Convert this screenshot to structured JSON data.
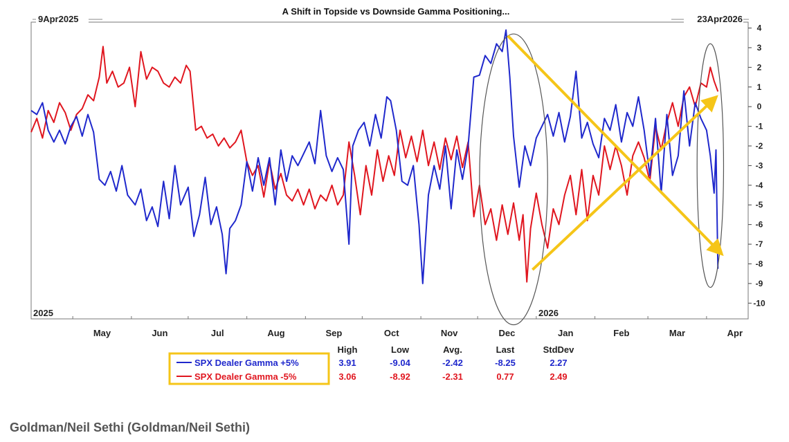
{
  "credit": "Goldman/Neil Sethi (Goldman/Neil Sethi)",
  "chart_data": {
    "type": "line",
    "title": "A Shift in Topside vs Downside Gamma Positioning...",
    "start_label": "9Apr2025",
    "end_label": "23Apr2026",
    "year_labels": [
      "2025",
      "2026"
    ],
    "x_tick_labels": [
      "May",
      "Jun",
      "Jul",
      "Aug",
      "Sep",
      "Oct",
      "Nov",
      "Dec",
      "Jan",
      "Feb",
      "Mar",
      "Apr"
    ],
    "y_ticks": [
      4,
      3,
      2,
      1,
      0,
      -1,
      -2,
      -3,
      -4,
      -5,
      -6,
      -7,
      -8,
      -9,
      -10
    ],
    "y_tick_labels": [
      "4",
      "3",
      "2",
      "1",
      "0",
      "-1",
      "-2",
      "-3",
      "-4",
      "-5",
      "-6",
      "-7",
      "-8",
      "-9",
      "-10"
    ],
    "ylim": [
      -10.8,
      4.3
    ],
    "x_domain": [
      "2025-04-09",
      "2026-04-23"
    ],
    "colors": {
      "blue": "#1f28cc",
      "red": "#e0161f",
      "arrow": "#f5c518",
      "highlight": "#f5c518"
    },
    "series": [
      {
        "name": "SPX Dealer Gamma +5%",
        "color": "#1f28cc",
        "points": [
          [
            "2025-04-09",
            -0.2
          ],
          [
            "2025-04-12",
            -0.4
          ],
          [
            "2025-04-15",
            0.2
          ],
          [
            "2025-04-18",
            -1.2
          ],
          [
            "2025-04-21",
            -1.8
          ],
          [
            "2025-04-24",
            -1.2
          ],
          [
            "2025-04-27",
            -1.9
          ],
          [
            "2025-04-30",
            -1.0
          ],
          [
            "2025-05-03",
            -0.5
          ],
          [
            "2025-05-06",
            -1.5
          ],
          [
            "2025-05-09",
            -0.4
          ],
          [
            "2025-05-12",
            -1.3
          ],
          [
            "2025-05-15",
            -3.7
          ],
          [
            "2025-05-18",
            -4.0
          ],
          [
            "2025-05-21",
            -3.3
          ],
          [
            "2025-05-24",
            -4.3
          ],
          [
            "2025-05-27",
            -3.0
          ],
          [
            "2025-05-30",
            -4.5
          ],
          [
            "2025-06-03",
            -5.0
          ],
          [
            "2025-06-06",
            -4.2
          ],
          [
            "2025-06-09",
            -5.8
          ],
          [
            "2025-06-12",
            -5.1
          ],
          [
            "2025-06-15",
            -6.1
          ],
          [
            "2025-06-18",
            -3.8
          ],
          [
            "2025-06-21",
            -5.7
          ],
          [
            "2025-06-24",
            -3.0
          ],
          [
            "2025-06-27",
            -5.0
          ],
          [
            "2025-07-01",
            -4.1
          ],
          [
            "2025-07-04",
            -6.6
          ],
          [
            "2025-07-07",
            -5.5
          ],
          [
            "2025-07-10",
            -3.6
          ],
          [
            "2025-07-13",
            -6.0
          ],
          [
            "2025-07-16",
            -5.1
          ],
          [
            "2025-07-19",
            -6.5
          ],
          [
            "2025-07-21",
            -8.5
          ],
          [
            "2025-07-23",
            -6.2
          ],
          [
            "2025-07-26",
            -5.8
          ],
          [
            "2025-07-29",
            -5.0
          ],
          [
            "2025-08-01",
            -2.8
          ],
          [
            "2025-08-04",
            -4.3
          ],
          [
            "2025-08-07",
            -2.6
          ],
          [
            "2025-08-10",
            -4.0
          ],
          [
            "2025-08-13",
            -2.6
          ],
          [
            "2025-08-16",
            -5.0
          ],
          [
            "2025-08-19",
            -2.2
          ],
          [
            "2025-08-22",
            -3.8
          ],
          [
            "2025-08-25",
            -2.5
          ],
          [
            "2025-08-28",
            -3.0
          ],
          [
            "2025-08-31",
            -2.4
          ],
          [
            "2025-09-03",
            -1.8
          ],
          [
            "2025-09-06",
            -2.9
          ],
          [
            "2025-09-09",
            -0.2
          ],
          [
            "2025-09-12",
            -2.5
          ],
          [
            "2025-09-15",
            -3.3
          ],
          [
            "2025-09-18",
            -2.6
          ],
          [
            "2025-09-21",
            -3.2
          ],
          [
            "2025-09-24",
            -7.0
          ],
          [
            "2025-09-26",
            -2.0
          ],
          [
            "2025-09-29",
            -1.2
          ],
          [
            "2025-10-02",
            -0.8
          ],
          [
            "2025-10-05",
            -2.0
          ],
          [
            "2025-10-08",
            -0.4
          ],
          [
            "2025-10-11",
            -1.6
          ],
          [
            "2025-10-14",
            0.5
          ],
          [
            "2025-10-16",
            0.3
          ],
          [
            "2025-10-19",
            -1.2
          ],
          [
            "2025-10-22",
            -3.8
          ],
          [
            "2025-10-25",
            -4.0
          ],
          [
            "2025-10-28",
            -3.0
          ],
          [
            "2025-10-31",
            -6.0
          ],
          [
            "2025-11-02",
            -9.0
          ],
          [
            "2025-11-05",
            -4.5
          ],
          [
            "2025-11-08",
            -3.0
          ],
          [
            "2025-11-11",
            -4.2
          ],
          [
            "2025-11-14",
            -2.0
          ],
          [
            "2025-11-17",
            -5.2
          ],
          [
            "2025-11-20",
            -2.2
          ],
          [
            "2025-11-23",
            -3.7
          ],
          [
            "2025-11-26",
            -2.0
          ],
          [
            "2025-11-29",
            1.5
          ],
          [
            "2025-12-02",
            1.6
          ],
          [
            "2025-12-05",
            2.6
          ],
          [
            "2025-12-08",
            2.2
          ],
          [
            "2025-12-11",
            3.2
          ],
          [
            "2025-12-14",
            2.8
          ],
          [
            "2025-12-16",
            3.9
          ],
          [
            "2025-12-18",
            1.5
          ],
          [
            "2025-12-20",
            -1.5
          ],
          [
            "2025-12-23",
            -4.1
          ],
          [
            "2025-12-26",
            -2.0
          ],
          [
            "2025-12-29",
            -3.0
          ],
          [
            "2026-01-01",
            -1.6
          ],
          [
            "2026-01-04",
            -1.0
          ],
          [
            "2026-01-07",
            -0.4
          ],
          [
            "2026-01-10",
            -1.5
          ],
          [
            "2026-01-13",
            -0.3
          ],
          [
            "2026-01-16",
            -1.8
          ],
          [
            "2026-01-19",
            -0.5
          ],
          [
            "2026-01-22",
            1.8
          ],
          [
            "2026-01-25",
            -1.6
          ],
          [
            "2026-01-28",
            -0.8
          ],
          [
            "2026-01-31",
            -1.9
          ],
          [
            "2026-02-03",
            -2.6
          ],
          [
            "2026-02-06",
            -0.6
          ],
          [
            "2026-02-09",
            -1.2
          ],
          [
            "2026-02-12",
            0.1
          ],
          [
            "2026-02-15",
            -1.8
          ],
          [
            "2026-02-18",
            -0.3
          ],
          [
            "2026-02-21",
            -1.0
          ],
          [
            "2026-02-24",
            0.5
          ],
          [
            "2026-02-27",
            -1.2
          ],
          [
            "2026-03-02",
            -3.5
          ],
          [
            "2026-03-05",
            -0.6
          ],
          [
            "2026-03-08",
            -4.4
          ],
          [
            "2026-03-11",
            -0.4
          ],
          [
            "2026-03-14",
            -3.5
          ],
          [
            "2026-03-17",
            -2.5
          ],
          [
            "2026-03-20",
            0.8
          ],
          [
            "2026-03-23",
            -2.0
          ],
          [
            "2026-03-26",
            0.2
          ],
          [
            "2026-03-29",
            -0.6
          ],
          [
            "2026-04-01",
            -1.2
          ],
          [
            "2026-04-03",
            -2.5
          ],
          [
            "2026-04-05",
            -4.4
          ],
          [
            "2026-04-06",
            -2.2
          ],
          [
            "2026-04-07",
            -8.25
          ]
        ]
      },
      {
        "name": "SPX Dealer Gamma -5%",
        "color": "#e0161f",
        "points": [
          [
            "2025-04-09",
            -1.3
          ],
          [
            "2025-04-12",
            -0.6
          ],
          [
            "2025-04-15",
            -1.6
          ],
          [
            "2025-04-18",
            -0.2
          ],
          [
            "2025-04-21",
            -0.8
          ],
          [
            "2025-04-24",
            0.2
          ],
          [
            "2025-04-27",
            -0.3
          ],
          [
            "2025-04-30",
            -1.2
          ],
          [
            "2025-05-03",
            -0.4
          ],
          [
            "2025-05-06",
            -0.1
          ],
          [
            "2025-05-09",
            0.6
          ],
          [
            "2025-05-12",
            0.3
          ],
          [
            "2025-05-15",
            1.5
          ],
          [
            "2025-05-17",
            3.06
          ],
          [
            "2025-05-19",
            1.2
          ],
          [
            "2025-05-22",
            1.8
          ],
          [
            "2025-05-25",
            1.0
          ],
          [
            "2025-05-28",
            1.2
          ],
          [
            "2025-05-31",
            2.0
          ],
          [
            "2025-06-03",
            0.0
          ],
          [
            "2025-06-06",
            2.8
          ],
          [
            "2025-06-09",
            1.4
          ],
          [
            "2025-06-12",
            2.0
          ],
          [
            "2025-06-15",
            1.8
          ],
          [
            "2025-06-18",
            1.2
          ],
          [
            "2025-06-21",
            1.0
          ],
          [
            "2025-06-24",
            1.5
          ],
          [
            "2025-06-27",
            1.2
          ],
          [
            "2025-06-30",
            2.1
          ],
          [
            "2025-07-02",
            1.8
          ],
          [
            "2025-07-05",
            -1.2
          ],
          [
            "2025-07-08",
            -1.0
          ],
          [
            "2025-07-11",
            -1.6
          ],
          [
            "2025-07-14",
            -1.4
          ],
          [
            "2025-07-17",
            -2.0
          ],
          [
            "2025-07-20",
            -1.6
          ],
          [
            "2025-07-23",
            -2.1
          ],
          [
            "2025-07-26",
            -1.8
          ],
          [
            "2025-07-29",
            -1.2
          ],
          [
            "2025-08-01",
            -2.8
          ],
          [
            "2025-08-04",
            -3.5
          ],
          [
            "2025-08-07",
            -3.0
          ],
          [
            "2025-08-10",
            -4.6
          ],
          [
            "2025-08-13",
            -2.8
          ],
          [
            "2025-08-16",
            -4.2
          ],
          [
            "2025-08-19",
            -3.4
          ],
          [
            "2025-08-22",
            -4.5
          ],
          [
            "2025-08-25",
            -4.8
          ],
          [
            "2025-08-28",
            -4.2
          ],
          [
            "2025-08-31",
            -5.0
          ],
          [
            "2025-09-03",
            -4.2
          ],
          [
            "2025-09-06",
            -5.2
          ],
          [
            "2025-09-09",
            -4.5
          ],
          [
            "2025-09-12",
            -4.8
          ],
          [
            "2025-09-15",
            -4.0
          ],
          [
            "2025-09-18",
            -5.0
          ],
          [
            "2025-09-21",
            -4.5
          ],
          [
            "2025-09-24",
            -1.8
          ],
          [
            "2025-09-27",
            -3.5
          ],
          [
            "2025-09-30",
            -5.5
          ],
          [
            "2025-10-03",
            -3.0
          ],
          [
            "2025-10-06",
            -4.5
          ],
          [
            "2025-10-09",
            -2.2
          ],
          [
            "2025-10-12",
            -3.8
          ],
          [
            "2025-10-15",
            -2.5
          ],
          [
            "2025-10-18",
            -3.5
          ],
          [
            "2025-10-21",
            -1.2
          ],
          [
            "2025-10-24",
            -2.6
          ],
          [
            "2025-10-27",
            -1.5
          ],
          [
            "2025-10-30",
            -2.8
          ],
          [
            "2025-11-02",
            -1.2
          ],
          [
            "2025-11-05",
            -3.0
          ],
          [
            "2025-11-08",
            -1.8
          ],
          [
            "2025-11-11",
            -3.2
          ],
          [
            "2025-11-14",
            -1.6
          ],
          [
            "2025-11-17",
            -2.7
          ],
          [
            "2025-11-20",
            -1.5
          ],
          [
            "2025-11-23",
            -3.1
          ],
          [
            "2025-11-26",
            -1.8
          ],
          [
            "2025-11-29",
            -5.6
          ],
          [
            "2025-12-02",
            -4.0
          ],
          [
            "2025-12-05",
            -6.0
          ],
          [
            "2025-12-08",
            -5.2
          ],
          [
            "2025-12-11",
            -6.8
          ],
          [
            "2025-12-14",
            -5.0
          ],
          [
            "2025-12-17",
            -6.5
          ],
          [
            "2025-12-20",
            -4.9
          ],
          [
            "2025-12-23",
            -6.8
          ],
          [
            "2025-12-25",
            -5.5
          ],
          [
            "2025-12-27",
            -8.92
          ],
          [
            "2025-12-29",
            -6.2
          ],
          [
            "2026-01-01",
            -4.4
          ],
          [
            "2026-01-04",
            -6.0
          ],
          [
            "2026-01-07",
            -7.2
          ],
          [
            "2026-01-10",
            -5.2
          ],
          [
            "2026-01-13",
            -6.0
          ],
          [
            "2026-01-16",
            -4.5
          ],
          [
            "2026-01-19",
            -3.5
          ],
          [
            "2026-01-22",
            -5.5
          ],
          [
            "2026-01-25",
            -3.2
          ],
          [
            "2026-01-28",
            -5.8
          ],
          [
            "2026-01-31",
            -3.5
          ],
          [
            "2026-02-03",
            -4.5
          ],
          [
            "2026-02-06",
            -2.0
          ],
          [
            "2026-02-09",
            -3.2
          ],
          [
            "2026-02-12",
            -2.0
          ],
          [
            "2026-02-15",
            -3.0
          ],
          [
            "2026-02-18",
            -4.5
          ],
          [
            "2026-02-21",
            -2.5
          ],
          [
            "2026-02-24",
            -1.8
          ],
          [
            "2026-02-27",
            -2.6
          ],
          [
            "2026-03-02",
            -3.8
          ],
          [
            "2026-03-05",
            -1.0
          ],
          [
            "2026-03-08",
            -2.2
          ],
          [
            "2026-03-11",
            -0.8
          ],
          [
            "2026-03-14",
            0.2
          ],
          [
            "2026-03-17",
            -1.0
          ],
          [
            "2026-03-20",
            0.5
          ],
          [
            "2026-03-23",
            1.0
          ],
          [
            "2026-03-26",
            0.0
          ],
          [
            "2026-03-29",
            1.2
          ],
          [
            "2026-04-01",
            1.0
          ],
          [
            "2026-04-03",
            2.0
          ],
          [
            "2026-04-05",
            1.3
          ],
          [
            "2026-04-07",
            0.77
          ]
        ]
      }
    ],
    "arrows": [
      {
        "from": [
          "2025-12-17",
          3.6
        ],
        "to": [
          "2026-04-07",
          -7.3
        ]
      },
      {
        "from": [
          "2025-12-30",
          -8.3
        ],
        "to": [
          "2026-04-04",
          0.3
        ]
      }
    ],
    "ellipses": [
      {
        "center": [
          "2025-12-20",
          -3.7
        ],
        "span_days": 18,
        "span_y": 7.4
      },
      {
        "center": [
          "2026-04-03",
          -3.0
        ],
        "span_days": 7,
        "span_y": 6.2
      }
    ],
    "stats": {
      "headers": [
        "High",
        "Low",
        "Avg.",
        "Last",
        "StdDev"
      ],
      "rows": [
        {
          "name": "SPX Dealer Gamma +5%",
          "color": "#1f28cc",
          "values": [
            "3.91",
            "-9.04",
            "-2.42",
            "-8.25",
            "2.27"
          ]
        },
        {
          "name": "SPX Dealer Gamma -5%",
          "color": "#e0161f",
          "values": [
            "3.06",
            "-8.92",
            "-2.31",
            "0.77",
            "2.49"
          ]
        }
      ]
    }
  }
}
